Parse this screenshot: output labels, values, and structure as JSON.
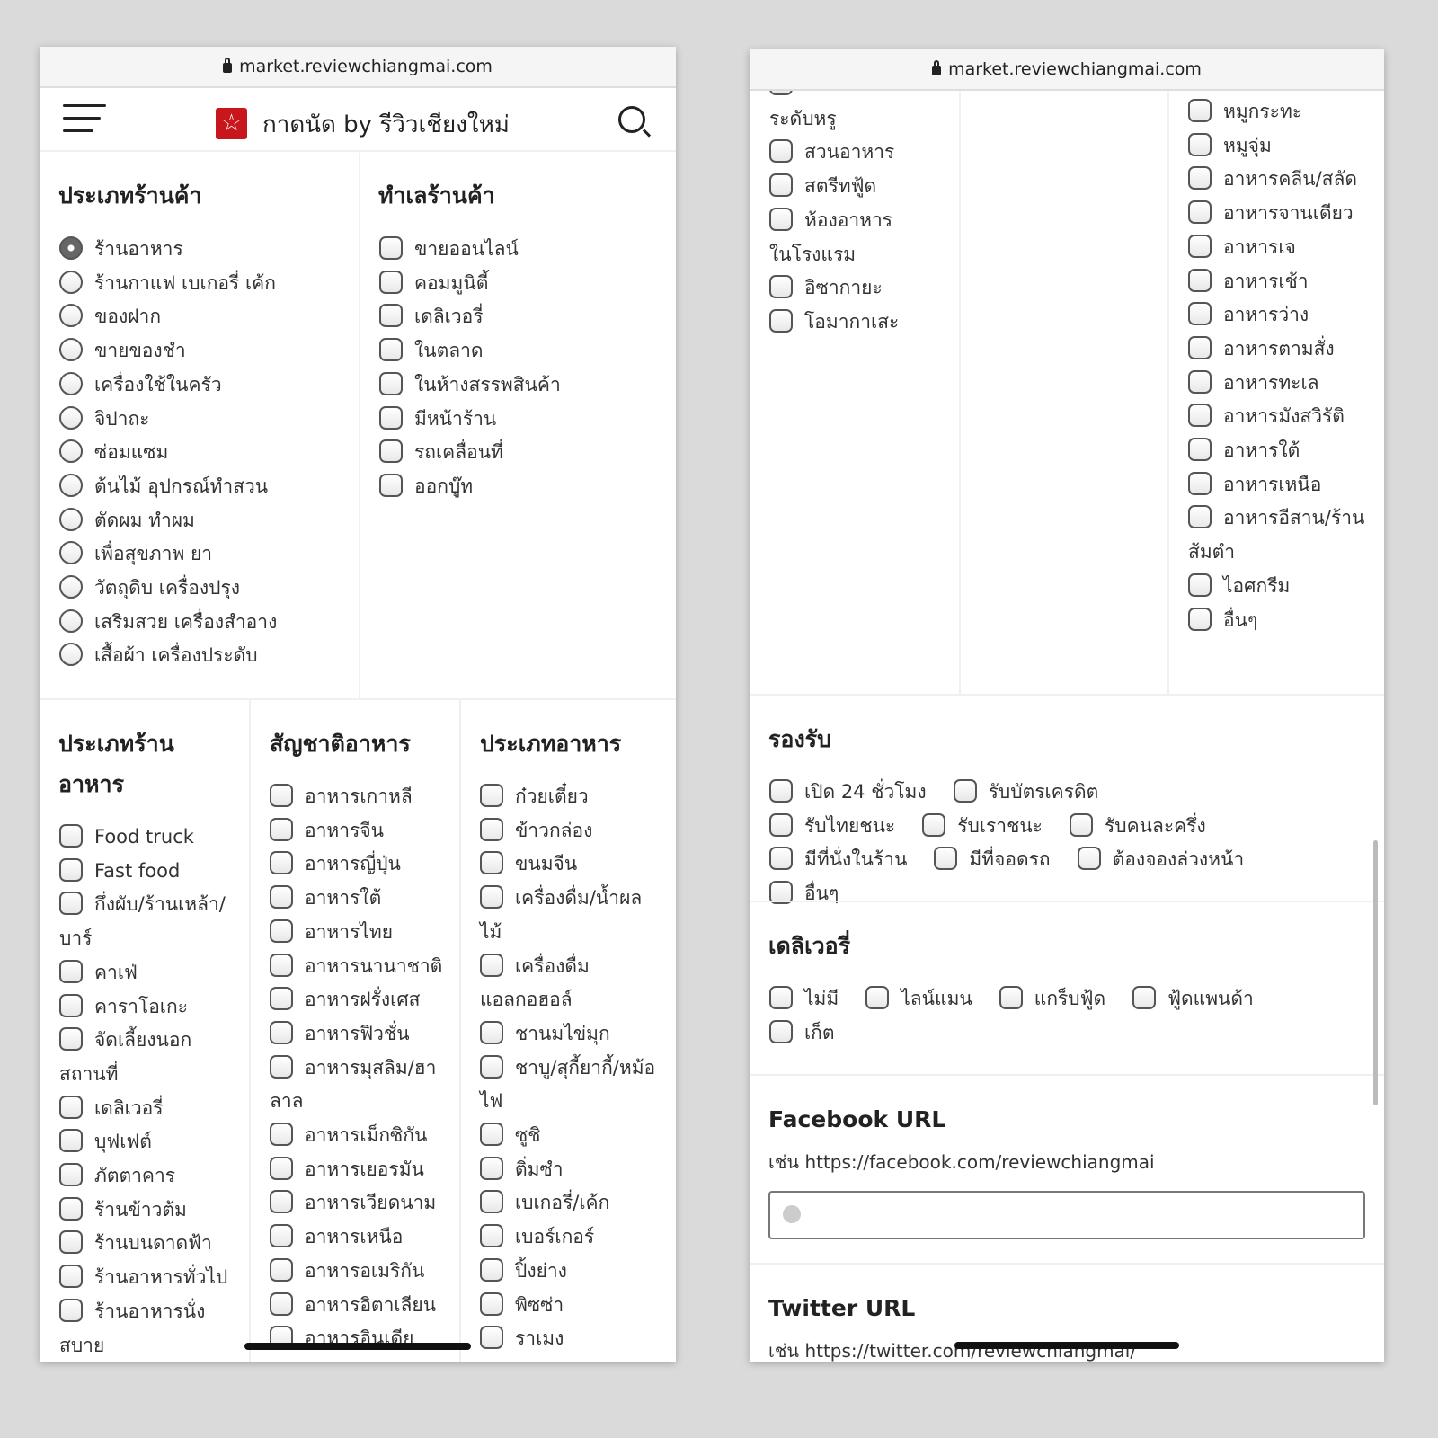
{
  "browser": {
    "url": "market.reviewchiangmai.com"
  },
  "header": {
    "logo_icon": "red-star-logo",
    "title": "กาดนัด by รีวิวเชียงใหม่"
  },
  "shop_type": {
    "heading": "ประเภทร้านค้า",
    "selected": "ร้านอาหาร",
    "items": [
      "ร้านอาหาร",
      "ร้านกาแฟ เบเกอรี่ เค้ก",
      "ของฝาก",
      "ขายของชำ",
      "เครื่องใช้ในครัว",
      "จิปาถะ",
      "ซ่อมแซม",
      "ต้นไม้ อุปกรณ์ทำสวน",
      "ตัดผม ทำผม",
      "เพื่อสุขภาพ ยา",
      "วัตถุดิบ เครื่องปรุง",
      "เสริมสวย เครื่องสำอาง",
      "เสื้อผ้า เครื่องประดับ"
    ]
  },
  "shop_location": {
    "heading": "ทำเลร้านค้า",
    "items": [
      "ขายออนไลน์",
      "คอมมูนิตี้",
      "เดลิเวอรี่",
      "ในตลาด",
      "ในห้างสรรพสินค้า",
      "มีหน้าร้าน",
      "รถเคลื่อนที่",
      "ออกบู๊ท"
    ]
  },
  "restaurant_type": {
    "heading": "ประเภทร้านอาหาร",
    "items": [
      "Food truck",
      "Fast food",
      "กึ่งผับ/ร้านเหล้า/บาร์",
      "คาเฟ่",
      "คาราโอเกะ",
      "จัดเลี้ยงนอกสถานที่",
      "เดลิเวอรี่",
      "บุฟเฟต์",
      "ภัตตาคาร",
      "ร้านข้าวต้ม",
      "ร้านบนดาดฟ้า",
      "ร้านอาหารทั่วไป",
      "ร้านอาหารนั่งสบาย"
    ],
    "items_continued": [
      "ร้านอาหารระดับหรู",
      "สวนอาหาร",
      "สตรีทฟู้ด",
      "ห้องอาหารในโรงแรม",
      "อิซากายะ",
      "โอมากาเสะ"
    ]
  },
  "cuisine": {
    "heading": "สัญชาติอาหาร",
    "items": [
      "อาหารเกาหลี",
      "อาหารจีน",
      "อาหารญี่ปุ่น",
      "อาหารใต้",
      "อาหารไทย",
      "อาหารนานาชาติ",
      "อาหารฝรั่งเศส",
      "อาหารฟิวชั่น",
      "อาหารมุสลิม/ฮาลาล",
      "อาหารเม็กซิกัน",
      "อาหารเยอรมัน",
      "อาหารเวียดนาม",
      "อาหารเหนือ",
      "อาหารอเมริกัน",
      "อาหารอิตาเลียน",
      "อาหารอินเดีย"
    ]
  },
  "food_type": {
    "heading": "ประเภทอาหาร",
    "items": [
      "ก๋วยเตี๋ยว",
      "ข้าวกล่อง",
      "ขนมจีน",
      "เครื่องดื่ม/น้ำผลไม้",
      "เครื่องดื่มแอลกอฮอล์",
      "ชานมไข่มุก",
      "ชาบู/สุกี้ยากี้/หม้อไฟ",
      "ซูชิ",
      "ติ่มซำ",
      "เบเกอรี่/เค้ก",
      "เบอร์เกอร์",
      "ปิ้งย่าง",
      "พิซซ่า",
      "ราเมง"
    ],
    "items_continued": [
      "หมูกระทะ",
      "หมูจุ่ม",
      "อาหารคลีน/สลัด",
      "อาหารจานเดียว",
      "อาหารเจ",
      "อาหารเช้า",
      "อาหารว่าง",
      "อาหารตามสั่ง",
      "อาหารทะเล",
      "อาหารมังสวิรัติ",
      "อาหารใต้",
      "อาหารเหนือ",
      "อาหารอีสาน/ร้านส้มตำ",
      "ไอศกรีม",
      "อื่นๆ"
    ]
  },
  "support": {
    "heading": "รองรับ",
    "items": [
      "เปิด 24 ชั่วโมง",
      "รับบัตรเครดิต",
      "รับไทยชนะ",
      "รับเราชนะ",
      "รับคนละครึ่ง",
      "มีที่นั่งในร้าน",
      "มีที่จอดรถ",
      "ต้องจองล่วงหน้า",
      "อื่นๆ"
    ]
  },
  "delivery": {
    "heading": "เดลิเวอรี่",
    "items": [
      "ไม่มี",
      "ไลน์แมน",
      "แกร็บฟู้ด",
      "ฟู้ดแพนด้า",
      "เก็ต"
    ]
  },
  "facebook": {
    "heading": "Facebook URL",
    "hint": "เช่น https://facebook.com/reviewchiangmai",
    "value": ""
  },
  "twitter": {
    "heading": "Twitter URL",
    "hint": "เช่น https://twitter.com/reviewchiangmai/"
  },
  "colors": {
    "brand": "#c8161d"
  }
}
